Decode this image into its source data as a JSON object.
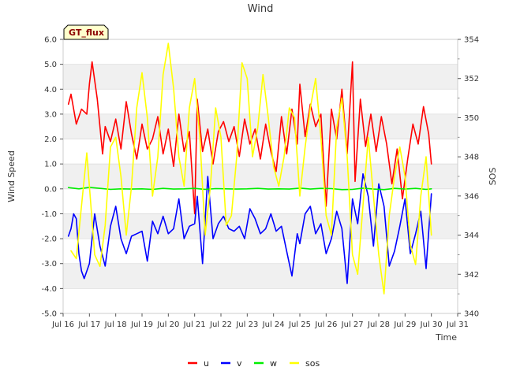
{
  "chart_data": {
    "type": "line",
    "title": "Wind",
    "xlabel": "Time",
    "ylabel": "Wind Speed",
    "y2label": "SOS",
    "badge": "GT_flux",
    "xlim": [
      16,
      31
    ],
    "ylim": [
      -5.0,
      6.0
    ],
    "y2lim": [
      340,
      354
    ],
    "x_ticks": [
      16,
      17,
      18,
      19,
      20,
      21,
      22,
      23,
      24,
      25,
      26,
      27,
      28,
      29,
      30,
      31
    ],
    "x_tick_labels": [
      "Jul 16",
      "Jul 17",
      "Jul 18",
      "Jul 19",
      "Jul 20",
      "Jul 21",
      "Jul 22",
      "Jul 23",
      "Jul 24",
      "Jul 25",
      "Jul 26",
      "Jul 27",
      "Jul 28",
      "Jul 29",
      "Jul 30",
      "Jul 31"
    ],
    "y_ticks": [
      -5,
      -4,
      -3,
      -2,
      -1,
      0,
      1,
      2,
      3,
      4,
      5,
      6
    ],
    "y_tick_labels": [
      "-5.0",
      "-4.0",
      "-3.0",
      "-2.0",
      "-1.0",
      "0.0",
      "1.0",
      "2.0",
      "3.0",
      "4.0",
      "5.0",
      "6.0"
    ],
    "y2_ticks": [
      340,
      342,
      344,
      346,
      348,
      350,
      352,
      354
    ],
    "y2_tick_labels": [
      "340",
      "342",
      "344",
      "346",
      "348",
      "350",
      "352",
      "354"
    ],
    "legend_position": "bottom-center",
    "series": [
      {
        "name": "u",
        "color": "#ff0000",
        "axis": "left",
        "x": [
          16.2,
          16.3,
          16.5,
          16.7,
          16.9,
          17.0,
          17.1,
          17.3,
          17.5,
          17.6,
          17.8,
          18.0,
          18.2,
          18.4,
          18.6,
          18.8,
          19.0,
          19.2,
          19.4,
          19.6,
          19.8,
          20.0,
          20.2,
          20.4,
          20.6,
          20.8,
          21.0,
          21.1,
          21.3,
          21.5,
          21.7,
          21.9,
          22.1,
          22.3,
          22.5,
          22.7,
          22.9,
          23.1,
          23.3,
          23.5,
          23.7,
          23.9,
          24.1,
          24.3,
          24.5,
          24.7,
          24.9,
          25.0,
          25.2,
          25.4,
          25.6,
          25.8,
          26.0,
          26.2,
          26.4,
          26.6,
          26.8,
          27.0,
          27.1,
          27.3,
          27.5,
          27.7,
          27.9,
          28.1,
          28.3,
          28.5,
          28.7,
          28.9,
          29.1,
          29.3,
          29.5,
          29.7,
          29.9,
          30.0
        ],
        "y": [
          3.4,
          3.8,
          2.6,
          3.2,
          3.0,
          4.2,
          5.1,
          3.6,
          1.4,
          2.5,
          1.9,
          2.8,
          1.6,
          3.5,
          2.2,
          1.2,
          2.6,
          1.6,
          2.0,
          2.9,
          1.4,
          2.4,
          0.9,
          3.0,
          1.5,
          2.3,
          -1.0,
          3.6,
          1.5,
          2.4,
          1.0,
          2.3,
          2.7,
          1.9,
          2.5,
          1.3,
          2.8,
          1.8,
          2.4,
          1.2,
          2.6,
          1.5,
          0.7,
          2.9,
          1.4,
          3.2,
          1.8,
          4.2,
          2.1,
          3.4,
          2.5,
          3.0,
          -0.7,
          3.2,
          2.0,
          4.0,
          1.4,
          5.1,
          0.3,
          3.6,
          1.7,
          3.0,
          1.5,
          2.9,
          1.8,
          0.2,
          1.6,
          -0.4,
          1.2,
          2.6,
          1.8,
          3.3,
          2.2,
          1.0
        ]
      },
      {
        "name": "v",
        "color": "#0000ff",
        "axis": "left",
        "x": [
          16.2,
          16.3,
          16.4,
          16.5,
          16.6,
          16.7,
          16.8,
          17.0,
          17.2,
          17.4,
          17.6,
          17.8,
          18.0,
          18.2,
          18.4,
          18.6,
          18.8,
          19.0,
          19.2,
          19.4,
          19.6,
          19.8,
          20.0,
          20.2,
          20.4,
          20.6,
          20.8,
          21.0,
          21.1,
          21.3,
          21.5,
          21.7,
          21.9,
          22.1,
          22.3,
          22.5,
          22.7,
          22.9,
          23.1,
          23.3,
          23.5,
          23.7,
          23.9,
          24.1,
          24.3,
          24.5,
          24.7,
          24.9,
          25.0,
          25.2,
          25.4,
          25.6,
          25.8,
          26.0,
          26.2,
          26.4,
          26.6,
          26.8,
          27.0,
          27.2,
          27.4,
          27.6,
          27.8,
          28.0,
          28.2,
          28.4,
          28.6,
          28.8,
          29.0,
          29.2,
          29.4,
          29.6,
          29.8,
          30.0
        ],
        "y": [
          -1.9,
          -1.6,
          -1.0,
          -1.2,
          -2.6,
          -3.3,
          -3.6,
          -3.0,
          -1.0,
          -2.3,
          -3.1,
          -1.5,
          -0.7,
          -2.0,
          -2.6,
          -1.9,
          -1.8,
          -1.7,
          -2.9,
          -1.3,
          -1.8,
          -1.1,
          -1.8,
          -1.6,
          -0.4,
          -2.0,
          -1.5,
          -1.4,
          -0.3,
          -3.0,
          0.5,
          -2.0,
          -1.4,
          -1.1,
          -1.6,
          -1.7,
          -1.5,
          -2.0,
          -0.8,
          -1.2,
          -1.8,
          -1.6,
          -1.0,
          -1.7,
          -1.5,
          -2.5,
          -3.5,
          -1.8,
          -2.2,
          -1.0,
          -0.7,
          -1.8,
          -1.4,
          -2.6,
          -2.0,
          -0.9,
          -1.6,
          -3.8,
          -0.4,
          -1.4,
          0.6,
          -0.3,
          -2.3,
          0.2,
          -0.7,
          -3.1,
          -2.5,
          -1.5,
          -0.4,
          -2.6,
          -1.8,
          -0.9,
          -3.2,
          -0.2
        ]
      },
      {
        "name": "w",
        "color": "#00ee00",
        "axis": "left",
        "x": [
          16.2,
          16.6,
          17.0,
          17.4,
          17.8,
          18.2,
          18.6,
          19.0,
          19.4,
          19.8,
          20.2,
          20.6,
          21.0,
          21.4,
          21.8,
          22.2,
          22.6,
          23.0,
          23.4,
          23.8,
          24.2,
          24.6,
          25.0,
          25.4,
          25.8,
          26.2,
          26.6,
          27.0,
          27.4,
          27.8,
          28.2,
          28.6,
          29.0,
          29.4,
          29.8,
          30.0
        ],
        "y": [
          0.05,
          0.0,
          0.06,
          0.02,
          -0.02,
          0.0,
          -0.01,
          0.0,
          -0.02,
          0.02,
          -0.01,
          0.0,
          0.02,
          -0.02,
          0.01,
          0.0,
          -0.01,
          0.0,
          0.02,
          -0.01,
          0.0,
          -0.01,
          0.03,
          -0.01,
          0.02,
          0.01,
          -0.03,
          -0.02,
          0.03,
          -0.01,
          -0.03,
          0.02,
          -0.01,
          0.02,
          -0.02,
          0.0
        ]
      },
      {
        "name": "sos",
        "color": "#ffff00",
        "axis": "right",
        "x": [
          16.3,
          16.5,
          16.7,
          16.9,
          17.0,
          17.2,
          17.4,
          17.6,
          17.8,
          18.0,
          18.2,
          18.4,
          18.6,
          18.8,
          19.0,
          19.2,
          19.4,
          19.6,
          19.8,
          20.0,
          20.2,
          20.4,
          20.6,
          20.8,
          21.0,
          21.2,
          21.4,
          21.6,
          21.8,
          22.0,
          22.2,
          22.4,
          22.6,
          22.8,
          23.0,
          23.2,
          23.4,
          23.6,
          23.8,
          24.0,
          24.2,
          24.4,
          24.6,
          24.8,
          25.0,
          25.2,
          25.4,
          25.6,
          25.8,
          26.0,
          26.2,
          26.4,
          26.6,
          26.8,
          27.0,
          27.2,
          27.4,
          27.6,
          27.8,
          28.0,
          28.2,
          28.4,
          28.6,
          28.8,
          29.0,
          29.2,
          29.4,
          29.6,
          29.8,
          30.0
        ],
        "y": [
          343.2,
          342.8,
          345.5,
          348.2,
          346.5,
          343.0,
          342.4,
          344.5,
          348.5,
          349.0,
          347.0,
          344.0,
          346.5,
          350.5,
          352.3,
          350.0,
          346.0,
          348.0,
          352.2,
          353.8,
          351.5,
          348.0,
          346.5,
          350.5,
          352.0,
          349.0,
          344.0,
          346.5,
          350.5,
          349.0,
          344.5,
          345.0,
          348.0,
          352.8,
          352.0,
          348.0,
          349.5,
          352.2,
          350.0,
          347.5,
          346.5,
          348.0,
          350.5,
          350.0,
          346.0,
          348.5,
          350.5,
          352.0,
          349.0,
          345.0,
          344.0,
          349.5,
          351.0,
          348.0,
          343.0,
          342.0,
          345.5,
          349.0,
          346.0,
          343.0,
          341.0,
          345.0,
          347.0,
          348.5,
          347.0,
          343.5,
          342.5,
          346.0,
          348.0,
          344.0
        ]
      }
    ]
  }
}
